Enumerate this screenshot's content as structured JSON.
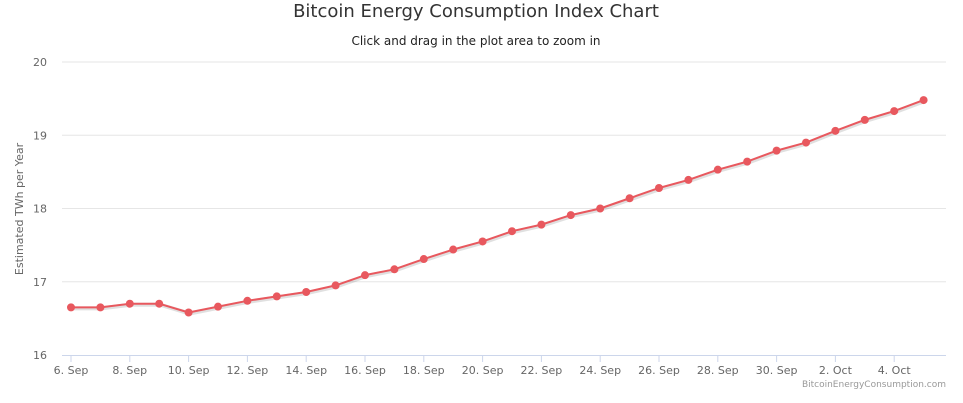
{
  "chart_data": {
    "type": "line",
    "title": "Bitcoin Energy Consumption Index Chart",
    "subtitle": "Click and drag in the plot area to zoom in",
    "ylabel": "Estimated TWh per Year",
    "xlabel": "",
    "credits": "BitcoinEnergyConsumption.com",
    "ylim": [
      16,
      20
    ],
    "yticks": [
      "16",
      "17",
      "18",
      "19",
      "20"
    ],
    "xticks": [
      "6. Sep",
      "8. Sep",
      "10. Sep",
      "12. Sep",
      "14. Sep",
      "16. Sep",
      "18. Sep",
      "20. Sep",
      "22. Sep",
      "24. Sep",
      "26. Sep",
      "28. Sep",
      "30. Sep",
      "2. Oct",
      "4. Oct"
    ],
    "grid": true,
    "legend": "none",
    "color": "#e8585e",
    "series": [
      {
        "x": [
          "6. Sep",
          "7. Sep",
          "8. Sep",
          "9. Sep",
          "10. Sep",
          "11. Sep",
          "12. Sep",
          "13. Sep",
          "14. Sep",
          "15. Sep",
          "16. Sep",
          "17. Sep",
          "18. Sep",
          "19. Sep",
          "20. Sep",
          "21. Sep",
          "22. Sep",
          "23. Sep",
          "24. Sep",
          "25. Sep",
          "26. Sep",
          "27. Sep",
          "28. Sep",
          "29. Sep",
          "30. Sep",
          "1. Oct",
          "2. Oct",
          "3. Oct",
          "4. Oct",
          "5. Oct"
        ],
        "values": [
          16.65,
          16.65,
          16.7,
          16.7,
          16.58,
          16.66,
          16.74,
          16.8,
          16.86,
          16.95,
          17.09,
          17.17,
          17.31,
          17.44,
          17.55,
          17.69,
          17.78,
          17.91,
          18.0,
          18.14,
          18.28,
          18.39,
          18.53,
          18.64,
          18.79,
          18.9,
          19.06,
          19.21,
          19.33,
          19.48
        ]
      }
    ]
  }
}
